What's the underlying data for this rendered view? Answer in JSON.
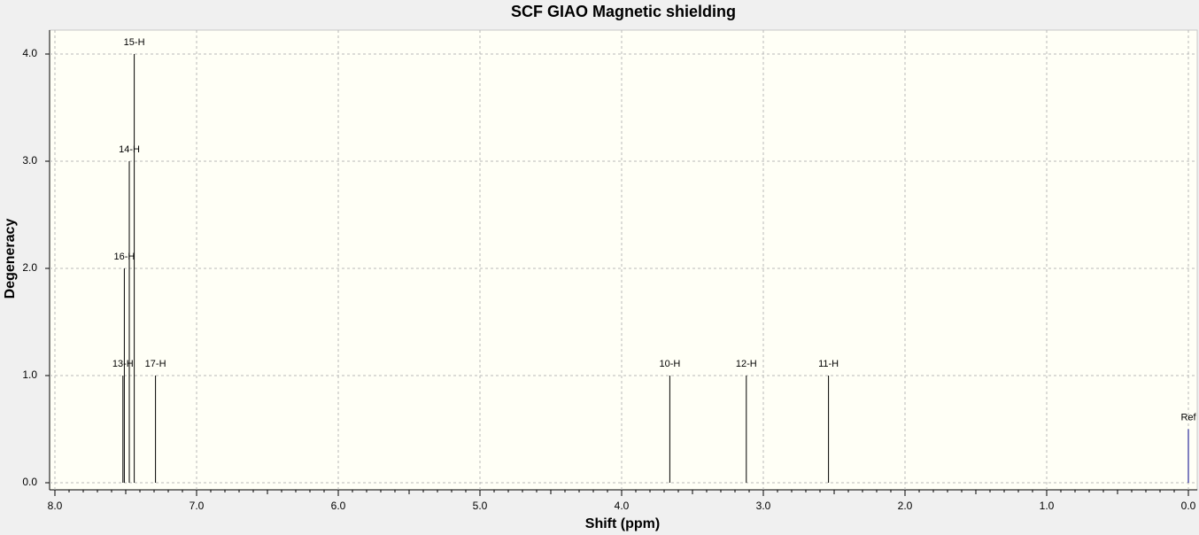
{
  "chart_data": {
    "type": "stick",
    "title": "SCF GIAO Magnetic shielding",
    "xlabel": "Shift (ppm)",
    "ylabel": "Degeneracy",
    "peaks": {
      "labels": [
        "13-H",
        "16-H",
        "14-H",
        "15-H",
        "17-H",
        "10-H",
        "12-H",
        "11-H"
      ],
      "x": [
        7.52,
        7.51,
        7.475,
        7.44,
        7.29,
        3.66,
        3.12,
        2.54
      ],
      "values": [
        1,
        2,
        3,
        4,
        1,
        1,
        1,
        1
      ],
      "color": "#000000"
    },
    "reference": {
      "label": "Ref",
      "x": 0,
      "value": 0.5,
      "color": "#00008b"
    },
    "xlim": [
      8,
      0
    ],
    "xticks": [
      {
        "value": 8,
        "label": "8.0"
      },
      {
        "value": 7,
        "label": "7.0"
      },
      {
        "value": 6,
        "label": "6.0"
      },
      {
        "value": 5,
        "label": "5.0"
      },
      {
        "value": 4,
        "label": "4.0"
      },
      {
        "value": 3,
        "label": "3.0"
      },
      {
        "value": 2,
        "label": "2.0"
      },
      {
        "value": 1,
        "label": "1.0"
      },
      {
        "value": 0,
        "label": "0.0"
      }
    ],
    "ylim": [
      0,
      4
    ],
    "yticks": [
      {
        "value": 0,
        "label": "0.0"
      },
      {
        "value": 1,
        "label": "1.0"
      },
      {
        "value": 2,
        "label": "2.0"
      },
      {
        "value": 3,
        "label": "3.0"
      },
      {
        "value": 4,
        "label": "4.0"
      }
    ],
    "grid": true
  }
}
